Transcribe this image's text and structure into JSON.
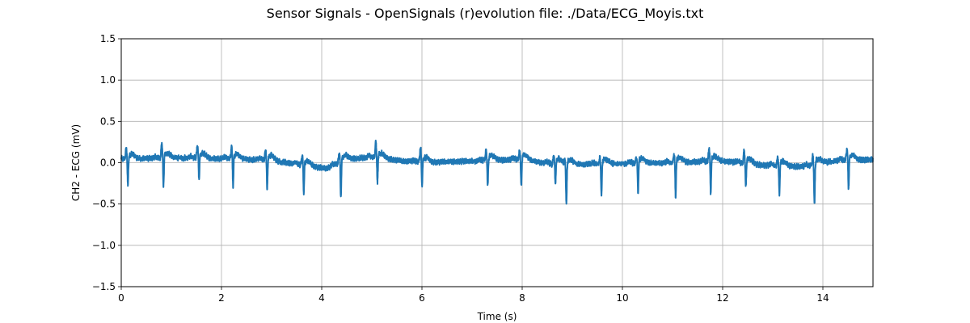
{
  "chart_data": {
    "type": "line",
    "title": "Sensor Signals - OpenSignals (r)evolution file: ./Data/ECG_Moyis.txt",
    "xlabel": "Time (s)",
    "ylabel": "CH2 - ECG (mV)",
    "xlim": [
      0,
      15
    ],
    "ylim": [
      -1.5,
      1.5
    ],
    "xticks": [
      0,
      2,
      4,
      6,
      8,
      10,
      12,
      14
    ],
    "xtick_labels": [
      "0",
      "2",
      "4",
      "6",
      "8",
      "10",
      "12",
      "14"
    ],
    "yticks": [
      -1.5,
      -1.0,
      -0.5,
      0.0,
      0.5,
      1.0,
      1.5
    ],
    "ytick_labels": [
      "−1.5",
      "−1.0",
      "−0.5",
      "0.0",
      "0.5",
      "1.0",
      "1.5"
    ],
    "grid": true,
    "series_color": "#1f77b4",
    "beats": [
      {
        "t": 0.12,
        "r": 0.14,
        "s": -0.35
      },
      {
        "t": 0.83,
        "r": 0.18,
        "s": -0.37
      },
      {
        "t": 1.54,
        "r": 0.16,
        "s": -0.29
      },
      {
        "t": 2.22,
        "r": 0.16,
        "s": -0.35
      },
      {
        "t": 2.9,
        "r": 0.14,
        "s": -0.39
      },
      {
        "t": 3.63,
        "r": 0.12,
        "s": -0.36
      },
      {
        "t": 4.37,
        "r": 0.13,
        "s": -0.45
      },
      {
        "t": 5.1,
        "r": 0.19,
        "s": -0.34
      },
      {
        "t": 5.99,
        "r": 0.19,
        "s": -0.31
      },
      {
        "t": 7.3,
        "r": 0.13,
        "s": -0.34
      },
      {
        "t": 7.97,
        "r": 0.12,
        "s": -0.36
      },
      {
        "t": 8.65,
        "r": 0.11,
        "s": -0.25
      },
      {
        "t": 8.87,
        "r": 0.05,
        "s": -0.52
      },
      {
        "t": 9.57,
        "r": 0.08,
        "s": -0.41
      },
      {
        "t": 10.3,
        "r": 0.08,
        "s": -0.38
      },
      {
        "t": 11.05,
        "r": 0.11,
        "s": -0.43
      },
      {
        "t": 11.75,
        "r": 0.17,
        "s": -0.42
      },
      {
        "t": 12.45,
        "r": 0.16,
        "s": -0.32
      },
      {
        "t": 13.12,
        "r": 0.11,
        "s": -0.39
      },
      {
        "t": 13.82,
        "r": 0.12,
        "s": -0.52
      },
      {
        "t": 14.5,
        "r": 0.15,
        "s": -0.37
      }
    ],
    "baseline": [
      {
        "x": 0.0,
        "y": 0.04
      },
      {
        "x": 1.0,
        "y": 0.06
      },
      {
        "x": 2.0,
        "y": 0.05
      },
      {
        "x": 3.0,
        "y": 0.03
      },
      {
        "x": 3.5,
        "y": -0.02
      },
      {
        "x": 4.1,
        "y": -0.07
      },
      {
        "x": 4.5,
        "y": 0.04
      },
      {
        "x": 5.0,
        "y": 0.07
      },
      {
        "x": 5.5,
        "y": 0.03
      },
      {
        "x": 6.0,
        "y": 0.0
      },
      {
        "x": 7.0,
        "y": 0.02
      },
      {
        "x": 8.0,
        "y": 0.04
      },
      {
        "x": 8.7,
        "y": -0.03
      },
      {
        "x": 9.2,
        "y": -0.02
      },
      {
        "x": 10.0,
        "y": -0.01
      },
      {
        "x": 11.0,
        "y": 0.0
      },
      {
        "x": 12.0,
        "y": 0.02
      },
      {
        "x": 12.8,
        "y": -0.03
      },
      {
        "x": 13.6,
        "y": -0.05
      },
      {
        "x": 14.2,
        "y": 0.02
      },
      {
        "x": 15.0,
        "y": 0.04
      }
    ]
  }
}
